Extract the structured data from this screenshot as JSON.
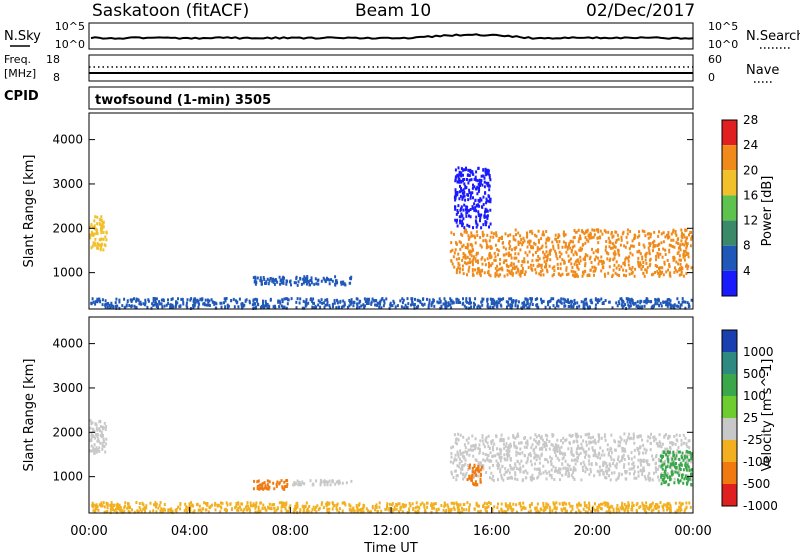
{
  "header": {
    "site": "Saskatoon (fitACF)",
    "beam": "Beam 10",
    "date": "02/Dec/2017"
  },
  "strip": {
    "nsky_label": "N.Sky",
    "nsearch_label": "N.Search",
    "freq_label_line1": "Freq.",
    "freq_label_line2": "[MHz]",
    "cpid_label": "CPID",
    "nave_label": "Nave",
    "noise_left_top": "10^5",
    "noise_left_bottom": "10^0",
    "noise_right_top": "10^5",
    "noise_right_bottom": "10^0",
    "freq_left_top": "18",
    "freq_left_bottom": "8",
    "nave_right_top": "60",
    "nave_right_bottom": "0",
    "cpid_text": "twofsound (1-min) 3505"
  },
  "chart_data": [
    {
      "type": "heatmap",
      "title": "",
      "ylabel": "Slant Range [km]",
      "xlabel": "",
      "x_range_hours_ut": [
        0,
        24
      ],
      "ylim": [
        180,
        4600
      ],
      "yticks": [
        "1000",
        "2000",
        "3000",
        "4000"
      ],
      "ytick_values": [
        1000,
        2000,
        3000,
        4000
      ],
      "colorbar": {
        "label": "Power [dB]",
        "tick_labels": [
          "4",
          "8",
          "12",
          "16",
          "20",
          "24",
          "28"
        ],
        "colors": [
          "#1a1aff",
          "#1f58b8",
          "#3a8a6a",
          "#5ec24f",
          "#f2c02a",
          "#f08a1a",
          "#e02020"
        ]
      },
      "regions": [
        {
          "start": "00:00",
          "end": "00:45",
          "range_km": [
            1500,
            2300
          ],
          "power_db": 22
        },
        {
          "start": "00:00",
          "end": "24:00",
          "range_km": [
            180,
            450
          ],
          "power_db": 10
        },
        {
          "start": "06:30",
          "end": "10:30",
          "range_km": [
            700,
            950
          ],
          "power_db": 8
        },
        {
          "start": "14:20",
          "end": "24:00",
          "range_km": [
            900,
            2000
          ],
          "power_db": 26
        },
        {
          "start": "14:30",
          "end": "16:00",
          "range_km": [
            2000,
            3400
          ],
          "power_db": 6
        }
      ]
    },
    {
      "type": "heatmap",
      "title": "",
      "ylabel": "Slant Range [km]",
      "xlabel": "Time UT",
      "x_range_hours_ut": [
        0,
        24
      ],
      "xticks": [
        "00:00",
        "04:00",
        "08:00",
        "12:00",
        "16:00",
        "20:00",
        "00:00"
      ],
      "ylim": [
        180,
        4600
      ],
      "yticks": [
        "1000",
        "2000",
        "3000",
        "4000"
      ],
      "ytick_values": [
        1000,
        2000,
        3000,
        4000
      ],
      "colorbar": {
        "label": "Velocity [m s^-1]",
        "tick_labels": [
          "1000",
          "500",
          "100",
          "25",
          "-25",
          "-100",
          "-500",
          "-1000"
        ],
        "colors": [
          "#1a3fb0",
          "#2e8a80",
          "#3aa84a",
          "#6ccc30",
          "#c8c8c8",
          "#f2b020",
          "#f07a10",
          "#e02020"
        ]
      },
      "regions": [
        {
          "start": "00:00",
          "end": "00:45",
          "range_km": [
            1500,
            2300
          ],
          "velocity_ms": 0
        },
        {
          "start": "00:00",
          "end": "24:00",
          "range_km": [
            180,
            450
          ],
          "velocity_ms": -80
        },
        {
          "start": "06:30",
          "end": "08:00",
          "range_km": [
            700,
            950
          ],
          "velocity_ms": -400
        },
        {
          "start": "08:00",
          "end": "10:30",
          "range_km": [
            800,
            950
          ],
          "velocity_ms": 0
        },
        {
          "start": "14:20",
          "end": "24:00",
          "range_km": [
            900,
            2000
          ],
          "velocity_ms": 0
        },
        {
          "start": "15:00",
          "end": "15:40",
          "range_km": [
            800,
            1300
          ],
          "velocity_ms": -200
        },
        {
          "start": "22:40",
          "end": "24:00",
          "range_km": [
            800,
            1600
          ],
          "velocity_ms": 150
        }
      ]
    }
  ]
}
